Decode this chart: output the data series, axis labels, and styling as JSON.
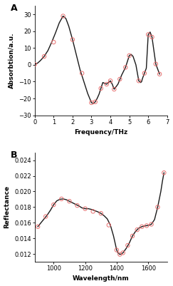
{
  "panel_A": {
    "title": "A",
    "xlabel": "Frequency/THz",
    "ylabel": "Absorbtion/a.u.",
    "xlim": [
      0,
      7
    ],
    "ylim": [
      -30,
      35
    ],
    "xticks": [
      0,
      1,
      2,
      3,
      4,
      5,
      6,
      7
    ],
    "yticks": [
      -30,
      -20,
      -10,
      0,
      10,
      20,
      30
    ],
    "solid_x": [
      0.0,
      0.15,
      0.3,
      0.5,
      0.7,
      0.9,
      1.1,
      1.3,
      1.5,
      1.65,
      1.8,
      2.0,
      2.2,
      2.4,
      2.6,
      2.8,
      3.0,
      3.1,
      3.2,
      3.3,
      3.4,
      3.5,
      3.6,
      3.7,
      3.8,
      3.9,
      4.0,
      4.1,
      4.2,
      4.4,
      4.6,
      4.8,
      5.0,
      5.1,
      5.2,
      5.35,
      5.5,
      5.6,
      5.65,
      5.7,
      5.8,
      5.9,
      6.0,
      6.1,
      6.2,
      6.4,
      6.6
    ],
    "solid_y": [
      0.3,
      1.0,
      2.5,
      5.0,
      8.5,
      13.5,
      19.0,
      25.0,
      29.0,
      27.5,
      23.0,
      15.0,
      6.0,
      -3.0,
      -10.0,
      -17.0,
      -22.5,
      -23.0,
      -22.0,
      -20.0,
      -17.5,
      -14.0,
      -10.5,
      -11.0,
      -11.5,
      -10.5,
      -9.5,
      -11.5,
      -14.5,
      -11.5,
      -6.0,
      -1.5,
      5.5,
      6.2,
      5.0,
      0.0,
      -9.5,
      -10.5,
      -10.0,
      -8.0,
      -5.0,
      -2.0,
      18.0,
      19.5,
      16.5,
      0.5,
      -5.5
    ],
    "dot_x": [
      0.0,
      0.5,
      1.0,
      1.5,
      2.0,
      2.5,
      3.0,
      3.2,
      3.5,
      3.8,
      4.0,
      4.2,
      4.5,
      4.8,
      5.0,
      5.5,
      5.8,
      6.0,
      6.2,
      6.4,
      6.6
    ],
    "dot_y": [
      0.3,
      5.0,
      13.5,
      29.0,
      15.0,
      -5.0,
      -22.5,
      -22.0,
      -14.0,
      -11.5,
      -9.5,
      -14.5,
      -8.5,
      -1.5,
      5.5,
      -9.5,
      -5.0,
      18.0,
      16.5,
      0.5,
      -5.5
    ],
    "line_color": "#1a1a1a",
    "dot_color": "#e87070",
    "dot_size": 15
  },
  "panel_B": {
    "title": "B",
    "xlabel": "Wavelength/nm",
    "ylabel": "Reflectance",
    "xlim": [
      880,
      1720
    ],
    "ylim": [
      0.011,
      0.025
    ],
    "xticks": [
      1000,
      1200,
      1400,
      1600
    ],
    "yticks": [
      0.012,
      0.014,
      0.016,
      0.018,
      0.02,
      0.022,
      0.024
    ],
    "solid_x": [
      900,
      920,
      940,
      960,
      980,
      1000,
      1020,
      1040,
      1060,
      1080,
      1100,
      1120,
      1140,
      1160,
      1180,
      1200,
      1220,
      1240,
      1260,
      1280,
      1300,
      1320,
      1340,
      1360,
      1380,
      1400,
      1410,
      1420,
      1430,
      1440,
      1460,
      1480,
      1500,
      1520,
      1540,
      1560,
      1580,
      1600,
      1620,
      1640,
      1660,
      1680,
      1690,
      1700
    ],
    "solid_y": [
      0.0155,
      0.016,
      0.0165,
      0.017,
      0.0176,
      0.0183,
      0.0188,
      0.019,
      0.01905,
      0.01895,
      0.01875,
      0.01855,
      0.01835,
      0.01815,
      0.0179,
      0.0178,
      0.0178,
      0.0177,
      0.01755,
      0.0174,
      0.0172,
      0.0169,
      0.0165,
      0.0157,
      0.0143,
      0.0125,
      0.0121,
      0.01195,
      0.012,
      0.01215,
      0.0127,
      0.0134,
      0.0143,
      0.0149,
      0.0153,
      0.0155,
      0.0156,
      0.01565,
      0.0158,
      0.0164,
      0.018,
      0.02,
      0.0213,
      0.0224
    ],
    "dot_x": [
      900,
      950,
      1000,
      1050,
      1100,
      1150,
      1200,
      1250,
      1300,
      1350,
      1400,
      1420,
      1440,
      1470,
      1500,
      1530,
      1560,
      1590,
      1620,
      1660,
      1700
    ],
    "dot_y": [
      0.0155,
      0.0168,
      0.0183,
      0.01905,
      0.01875,
      0.0182,
      0.0178,
      0.01745,
      0.0172,
      0.0157,
      0.0125,
      0.01195,
      0.01215,
      0.0131,
      0.0143,
      0.0151,
      0.0155,
      0.01562,
      0.0158,
      0.018,
      0.0224
    ],
    "line_color": "#1a1a1a",
    "dot_color": "#e87070",
    "dot_size": 15
  },
  "background_color": "#ffffff",
  "fig_width": 2.43,
  "fig_height": 4.01,
  "dpi": 100
}
